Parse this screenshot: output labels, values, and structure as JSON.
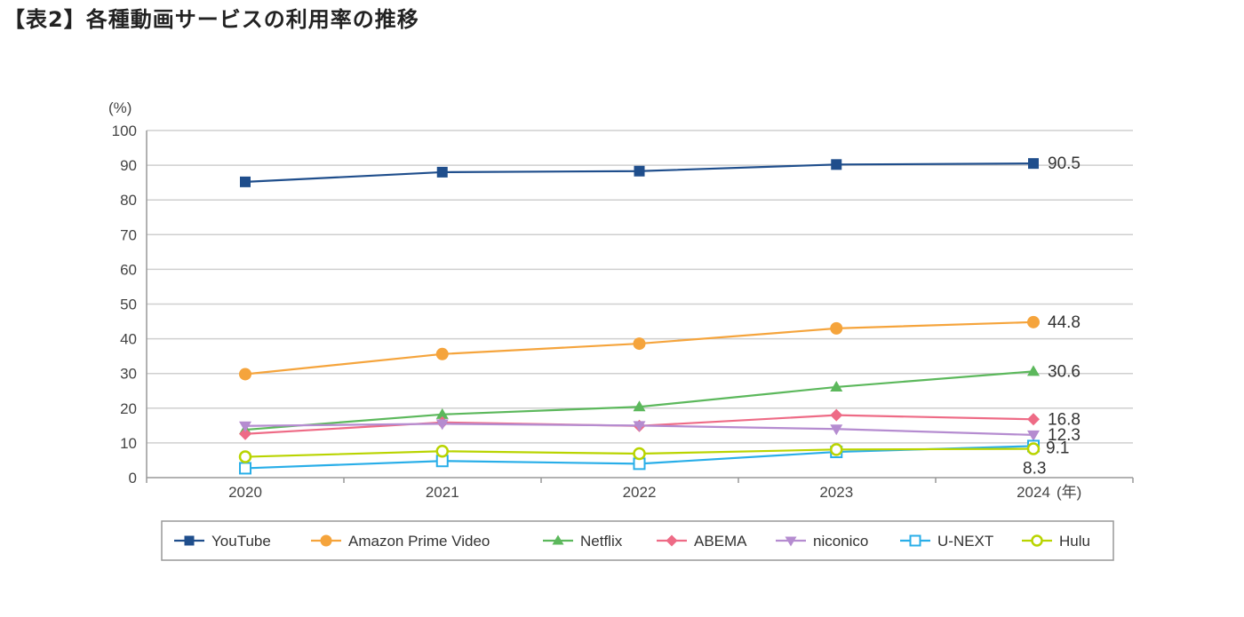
{
  "page_title": "【表2】各種動画サービスの利用率の推移",
  "chart_data": {
    "type": "line",
    "title": "【表2】各種動画サービスの利用率の推移",
    "ylabel": "(%)",
    "xunit": "(年)",
    "ylim": [
      0,
      100
    ],
    "yticks": [
      0,
      10,
      20,
      30,
      40,
      50,
      60,
      70,
      80,
      90,
      100
    ],
    "categories": [
      "2020",
      "2021",
      "2022",
      "2023",
      "2024"
    ],
    "grid": true,
    "legend_position": "bottom",
    "series": [
      {
        "name": "YouTube",
        "color": "#1f4e8c",
        "marker": "square",
        "values": [
          85.2,
          88.0,
          88.3,
          90.2,
          90.5
        ],
        "end_label": "90.5"
      },
      {
        "name": "Amazon Prime Video",
        "color": "#f5a43c",
        "marker": "circle",
        "values": [
          29.8,
          35.6,
          38.6,
          43.0,
          44.8
        ],
        "end_label": "44.8"
      },
      {
        "name": "Netflix",
        "color": "#5cb85c",
        "marker": "triangle-up",
        "values": [
          13.8,
          18.2,
          20.4,
          26.1,
          30.6
        ],
        "end_label": "30.6"
      },
      {
        "name": "ABEMA",
        "color": "#ee6b86",
        "marker": "diamond",
        "values": [
          12.6,
          15.9,
          14.9,
          18.0,
          16.8
        ],
        "end_label": "16.8"
      },
      {
        "name": "niconico",
        "color": "#b58cd0",
        "marker": "triangle-down",
        "values": [
          14.9,
          15.5,
          15.0,
          14.0,
          12.3
        ],
        "end_label": "12.3"
      },
      {
        "name": "U-NEXT",
        "color": "#29aee8",
        "marker": "square-open",
        "values": [
          2.7,
          4.8,
          4.0,
          7.4,
          9.1
        ],
        "end_label": "9.1"
      },
      {
        "name": "Hulu",
        "color": "#b9d400",
        "marker": "circle-open",
        "values": [
          6.0,
          7.6,
          6.9,
          8.1,
          8.3
        ],
        "end_label": "8.3"
      }
    ]
  }
}
